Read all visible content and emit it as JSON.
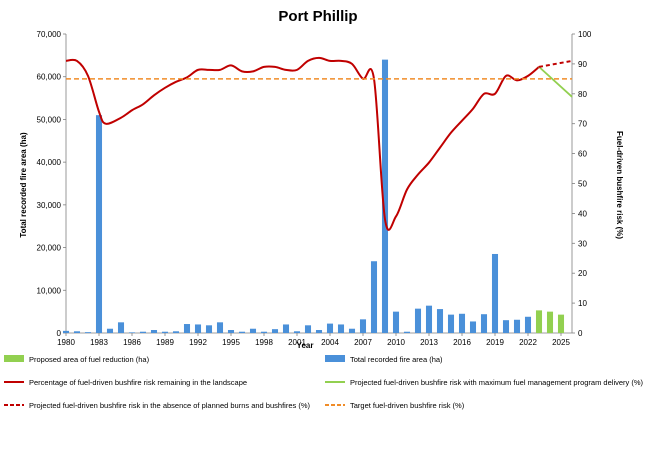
{
  "chart_data": {
    "type": "bar",
    "title": "Port Phillip",
    "xlabel": "Year",
    "ylabel_left": "Total recorded fire area (ha)",
    "ylabel_right": "Fuel-driven bushfire risk (%)",
    "ylim_left": [
      0,
      70000
    ],
    "ylim_right": [
      0,
      100
    ],
    "xlim": [
      1980,
      2026
    ],
    "x_ticks": [
      "1980",
      "1983",
      "1986",
      "1989",
      "1992",
      "1995",
      "1998",
      "2001",
      "2004",
      "2007",
      "2010",
      "2013",
      "2016",
      "2019",
      "2022",
      "2025"
    ],
    "y_left_ticks": [
      "0",
      "10,000",
      "20,000",
      "30,000",
      "40,000",
      "50,000",
      "60,000",
      "70,000"
    ],
    "y_right_ticks": [
      "0",
      "10",
      "20",
      "30",
      "40",
      "50",
      "60",
      "70",
      "80",
      "90",
      "100"
    ],
    "colors": {
      "fire_area": "#4a90d9",
      "fuel_reduction": "#92d050",
      "risk": "#c00000",
      "target": "#f08c28",
      "projection_max": "#92d050",
      "projection_none": "#c00000"
    },
    "series": [
      {
        "name": "Total recorded fire area (ha)",
        "type": "bar",
        "axis": "left",
        "x": [
          1980,
          1981,
          1982,
          1983,
          1984,
          1985,
          1986,
          1987,
          1988,
          1989,
          1990,
          1991,
          1992,
          1993,
          1994,
          1995,
          1996,
          1997,
          1998,
          1999,
          2000,
          2001,
          2002,
          2003,
          2004,
          2005,
          2006,
          2007,
          2008,
          2009,
          2010,
          2011,
          2012,
          2013,
          2014,
          2015,
          2016,
          2017,
          2018,
          2019,
          2020,
          2021,
          2022
        ],
        "values": [
          500,
          400,
          200,
          51000,
          1000,
          2500,
          150,
          300,
          700,
          300,
          400,
          2100,
          2000,
          1800,
          2500,
          700,
          300,
          1000,
          300,
          900,
          2000,
          400,
          1800,
          700,
          2200,
          2000,
          1000,
          3200,
          16800,
          64000,
          5000,
          300,
          5700,
          6400,
          5600,
          4300,
          4500,
          2700,
          4400,
          18500,
          3000,
          3100,
          3800
        ]
      },
      {
        "name": "Proposed area of fuel reduction (ha)",
        "type": "bar",
        "axis": "left",
        "x": [
          2023,
          2024,
          2025
        ],
        "values": [
          5300,
          5000,
          4300
        ]
      },
      {
        "name": "Percentage of fuel-driven bushfire risk remaining in the landscape",
        "type": "line",
        "axis": "right",
        "x": [
          1980,
          1981,
          1982,
          1983,
          1983.6,
          1985,
          1986,
          1987,
          1988,
          1989,
          1990,
          1991,
          1992,
          1993,
          1994,
          1995,
          1996,
          1997,
          1998,
          1999,
          2000,
          2001,
          2002,
          2003,
          2004,
          2005,
          2006,
          2007,
          2008,
          2009,
          2010,
          2011,
          2012,
          2013,
          2014,
          2015,
          2016,
          2017,
          2018,
          2019,
          2020,
          2021,
          2022,
          2023
        ],
        "values": [
          91,
          91,
          86,
          74,
          70,
          72,
          74.5,
          76.5,
          79.5,
          82,
          84,
          85.5,
          88,
          88,
          88,
          89.5,
          87.5,
          87.5,
          89,
          89,
          88,
          88,
          91,
          92,
          91,
          91,
          90,
          85,
          85,
          38,
          39,
          48,
          53,
          57,
          62,
          67,
          71,
          75,
          80,
          80,
          86,
          84.5,
          86,
          89
        ]
      },
      {
        "name": "Projected fuel-driven bushfire risk with maximum fuel management program delivery  (%)",
        "type": "line",
        "axis": "right",
        "x": [
          2023,
          2026
        ],
        "values": [
          89,
          79
        ]
      },
      {
        "name": "Projected fuel-driven bushfire risk in the absence of planned burns and bushfires (%)",
        "type": "line",
        "axis": "right",
        "x": [
          2023,
          2026
        ],
        "values": [
          89,
          91
        ]
      },
      {
        "name": "Target fuel-driven bushfire risk (%)",
        "type": "line",
        "axis": "right",
        "x": [
          1980,
          2026
        ],
        "values": [
          85,
          85
        ]
      }
    ],
    "legend": {
      "placement": "bottom",
      "items": [
        {
          "label": "Proposed area of fuel reduction (ha)",
          "symbol": "bar",
          "color": "#92d050"
        },
        {
          "label": "Total recorded fire area (ha)",
          "symbol": "bar",
          "color": "#4a90d9"
        },
        {
          "label": "Percentage of fuel-driven bushfire risk remaining in the landscape",
          "symbol": "line",
          "color": "#c00000"
        },
        {
          "label": "Projected fuel-driven bushfire risk with maximum fuel management program delivery  (%)",
          "symbol": "line",
          "color": "#92d050"
        },
        {
          "label": "Projected fuel-driven bushfire risk in the absence of planned burns and bushfires (%)",
          "symbol": "dashed",
          "color": "#c00000"
        },
        {
          "label": "Target fuel-driven bushfire risk (%)",
          "symbol": "dashed",
          "color": "#f08c28"
        }
      ]
    }
  }
}
